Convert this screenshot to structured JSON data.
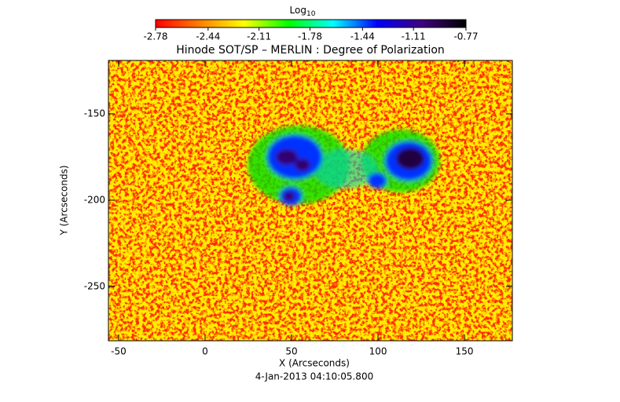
{
  "chart_data": {
    "type": "image",
    "title": "Hinode SOT/SP – MERLIN : Degree of Polarization",
    "colorbar_title": "Log",
    "colorbar_title_sub": "10",
    "colorbar_lim": [
      -2.78,
      -0.77
    ],
    "colorbar_ticks": [
      -2.78,
      -2.44,
      -2.11,
      -1.78,
      -1.44,
      -1.11,
      -0.77
    ],
    "colormap": [
      "#ff0000",
      "#ff8000",
      "#ffff00",
      "#00ff00",
      "#00ffff",
      "#0000ff",
      "#400080",
      "#000000"
    ],
    "x_label": "X (Arcseconds)",
    "y_label": "Y (Arcseconds)",
    "xlim": [
      -55.9,
      177.7
    ],
    "xticks": [
      -50,
      0,
      50,
      100,
      150
    ],
    "ylim": [
      -281.4,
      -119.1
    ],
    "yticks": [
      -250,
      -200,
      -150
    ],
    "footer": "4-Jan-2013 04:10:05.800"
  }
}
